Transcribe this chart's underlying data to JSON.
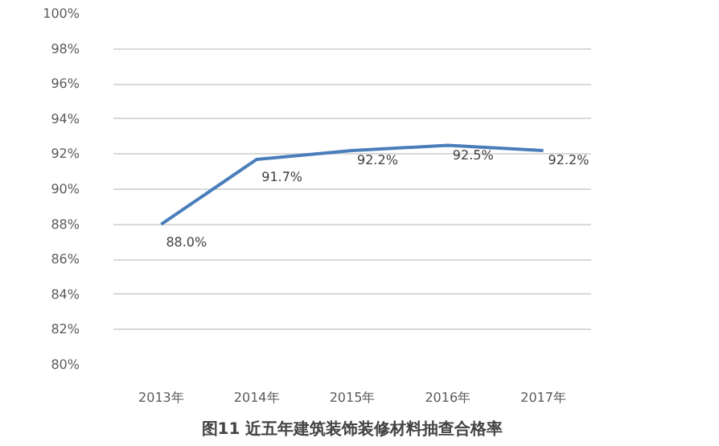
{
  "chart_data": {
    "type": "line",
    "title": "图11 近五年建筑装饰装修材料抽查合格率",
    "categories": [
      "2013年",
      "2014年",
      "2015年",
      "2016年",
      "2017年"
    ],
    "series": [
      {
        "color": "#4a7ebb",
        "values": [
          88.0,
          91.7,
          92.2,
          92.5,
          92.2
        ],
        "value_labels": [
          "88.0%",
          "91.7%",
          "92.2%",
          "92.5%",
          "92.2%"
        ]
      }
    ],
    "ylim": [
      80,
      100
    ],
    "yticks": [
      {
        "value": 80,
        "label": "80%"
      },
      {
        "value": 82,
        "label": "82%"
      },
      {
        "value": 84,
        "label": "84%"
      },
      {
        "value": 86,
        "label": "86%"
      },
      {
        "value": 88,
        "label": "88%"
      },
      {
        "value": 90,
        "label": "90%"
      },
      {
        "value": 92,
        "label": "92%"
      },
      {
        "value": 94,
        "label": "94%"
      },
      {
        "value": 96,
        "label": "96%"
      },
      {
        "value": 98,
        "label": "98%"
      },
      {
        "value": 100,
        "label": "100%"
      }
    ],
    "grid": "y",
    "marker": "none",
    "line_style": "solid"
  }
}
